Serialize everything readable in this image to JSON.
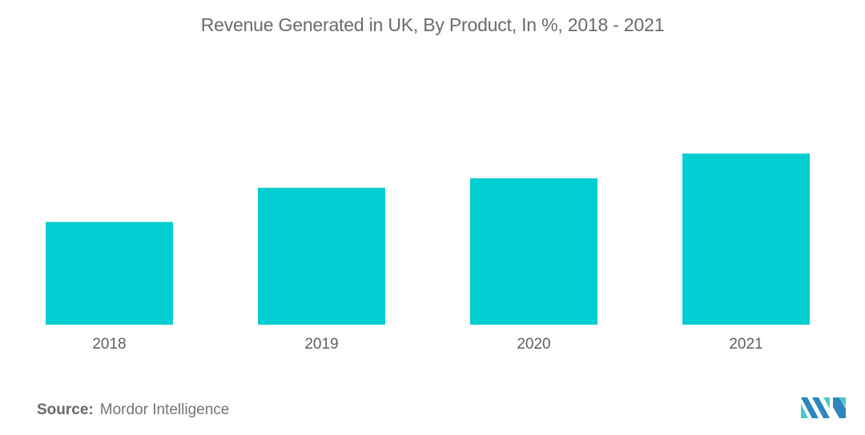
{
  "chart_data": {
    "type": "bar",
    "title": "Revenue Generated in UK, By Product, In %, 2018 - 2021",
    "categories": [
      "2018",
      "2019",
      "2020",
      "2021"
    ],
    "values": [
      60,
      80,
      85.5,
      100
    ],
    "xlabel": "",
    "ylabel": "",
    "ylim": [
      0,
      100
    ],
    "grid": false,
    "legend": "none",
    "bar_color": "#00CED1"
  },
  "footer": {
    "source_label": "Source:",
    "source_value": "Mordor Intelligence"
  },
  "logo": {
    "name": "Mordor Intelligence logo",
    "colors": [
      "#2E86C1",
      "#48C9C9"
    ]
  }
}
